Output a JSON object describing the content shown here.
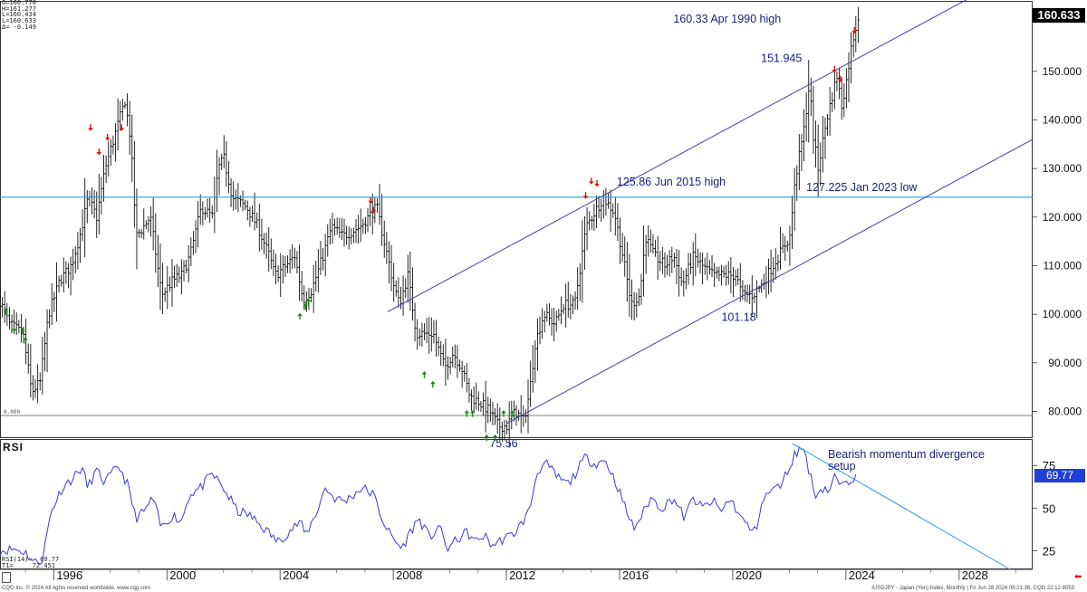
{
  "ohlc_readout": {
    "open": "O=160.770",
    "high": "H=161.277",
    "low": "L=160.434",
    "last": "L=160.633",
    "change": "Δ= -0.149"
  },
  "last_price_label": "160.633",
  "rsi_title": "RSI",
  "rsi_readout": {
    "line1": "RSI(14)=  69.77",
    "line2": "T1=     72.451"
  },
  "rsi_last_label": "69.77",
  "footer_left": "CQG Inc. © 2024 All rights reserved worldwide. www.cqg.com",
  "footer_right": "IUSDJPY - Japan (Yen) Index, Monthly | Fri Jun 28 2024 08:21:36, CQG 22.12.8053",
  "zero_label": "0.000",
  "colors": {
    "bars": "#111111",
    "channel": "#4040a0",
    "horizontal": "#2aa0e6",
    "annotation": "#1a237e",
    "down_arrow": "#e01010",
    "up_arrow": "#1a8a1a",
    "rsi_line": "#3a3adc",
    "rsi_trend": "#2a9ae6"
  },
  "chart_data": [
    {
      "type": "ohlc",
      "series": "USDJPY monthly",
      "x_ticks": [
        "1996",
        "2000",
        "2004",
        "2008",
        "2012",
        "2016",
        "2020",
        "2024",
        "2028"
      ],
      "xlim": [
        1994.1,
        2030.6
      ],
      "ylim": [
        74.5,
        164.5
      ],
      "y_ticks": [
        "80.000",
        "90.000",
        "100.000",
        "110.000",
        "120.000",
        "130.000",
        "140.000",
        "150.000",
        "160.633"
      ],
      "y_tick_values": [
        80,
        90,
        100,
        110,
        120,
        130,
        140,
        150
      ],
      "horizontal_line": 124.1,
      "channel_upper": [
        [
          2007.8,
          100.5
        ],
        [
          2028.5,
          165.5
        ]
      ],
      "channel_lower": [
        [
          2012.0,
          77.5
        ],
        [
          2030.6,
          136.0
        ]
      ],
      "anchors": [
        [
          1994.1,
          104
        ],
        [
          1994.5,
          98
        ],
        [
          1995.0,
          96
        ],
        [
          1995.3,
          84
        ],
        [
          1995.6,
          86
        ],
        [
          1995.9,
          100
        ],
        [
          1996.3,
          107
        ],
        [
          1996.7,
          110
        ],
        [
          1997.0,
          116
        ],
        [
          1997.3,
          124
        ],
        [
          1997.6,
          120
        ],
        [
          1997.9,
          130
        ],
        [
          1998.2,
          136
        ],
        [
          1998.6,
          144
        ],
        [
          1998.8,
          136
        ],
        [
          1999.0,
          116
        ],
        [
          1999.5,
          120
        ],
        [
          1999.9,
          104
        ],
        [
          2000.3,
          107
        ],
        [
          2000.6,
          108
        ],
        [
          2000.9,
          112
        ],
        [
          2001.3,
          122
        ],
        [
          2001.7,
          120
        ],
        [
          2001.9,
          130
        ],
        [
          2002.1,
          132
        ],
        [
          2002.4,
          124
        ],
        [
          2002.9,
          122
        ],
        [
          2003.3,
          118
        ],
        [
          2003.7,
          112
        ],
        [
          2003.9,
          108
        ],
        [
          2004.3,
          110
        ],
        [
          2004.6,
          112
        ],
        [
          2004.9,
          103
        ],
        [
          2005.2,
          105
        ],
        [
          2005.6,
          112
        ],
        [
          2005.9,
          118
        ],
        [
          2006.3,
          116
        ],
        [
          2006.6,
          117
        ],
        [
          2006.9,
          118
        ],
        [
          2007.2,
          120
        ],
        [
          2007.5,
          122
        ],
        [
          2007.8,
          114
        ],
        [
          2008.1,
          106
        ],
        [
          2008.3,
          102
        ],
        [
          2008.6,
          108
        ],
        [
          2008.9,
          96
        ],
        [
          2009.2,
          96
        ],
        [
          2009.5,
          96
        ],
        [
          2009.9,
          89
        ],
        [
          2010.2,
          92
        ],
        [
          2010.5,
          89
        ],
        [
          2010.8,
          83
        ],
        [
          2011.1,
          82
        ],
        [
          2011.5,
          80
        ],
        [
          2011.8,
          77
        ],
        [
          2012.1,
          77
        ],
        [
          2012.4,
          80
        ],
        [
          2012.7,
          78
        ],
        [
          2012.9,
          84
        ],
        [
          2013.1,
          94
        ],
        [
          2013.4,
          100
        ],
        [
          2013.8,
          98
        ],
        [
          2014.1,
          102
        ],
        [
          2014.5,
          102
        ],
        [
          2014.9,
          118
        ],
        [
          2015.1,
          120
        ],
        [
          2015.5,
          124
        ],
        [
          2015.9,
          121
        ],
        [
          2016.2,
          112
        ],
        [
          2016.5,
          102
        ],
        [
          2016.8,
          104
        ],
        [
          2017.0,
          116
        ],
        [
          2017.3,
          112
        ],
        [
          2017.7,
          110
        ],
        [
          2018.0,
          112
        ],
        [
          2018.3,
          106
        ],
        [
          2018.7,
          112
        ],
        [
          2019.0,
          110
        ],
        [
          2019.4,
          108
        ],
        [
          2019.8,
          108
        ],
        [
          2020.2,
          108
        ],
        [
          2020.4,
          104
        ],
        [
          2020.8,
          104
        ],
        [
          2021.1,
          106
        ],
        [
          2021.5,
          110
        ],
        [
          2021.9,
          114
        ],
        [
          2022.1,
          116
        ],
        [
          2022.3,
          128
        ],
        [
          2022.6,
          138
        ],
        [
          2022.8,
          148
        ],
        [
          2022.9,
          138
        ],
        [
          2023.1,
          130
        ],
        [
          2023.4,
          140
        ],
        [
          2023.6,
          145
        ],
        [
          2023.8,
          150
        ],
        [
          2023.9,
          142
        ],
        [
          2024.1,
          148
        ],
        [
          2024.3,
          156
        ],
        [
          2024.5,
          160.6
        ]
      ],
      "annotations": [
        {
          "text": "160.33 Apr 1990 high",
          "x": 2017.9,
          "y": 160
        },
        {
          "text": "151.945",
          "x": 2021.0,
          "y": 151.9
        },
        {
          "text": "125.86 Jun 2015 high",
          "x": 2015.9,
          "y": 126.5
        },
        {
          "text": "127.225 Jan 2023 low",
          "x": 2022.6,
          "y": 125.4
        },
        {
          "text": "101.18",
          "x": 2019.6,
          "y": 98.6
        },
        {
          "text": "75.56",
          "x": 2011.4,
          "y": 72.6
        }
      ],
      "down_arrows": [
        [
          1997.3,
          138
        ],
        [
          1997.6,
          133
        ],
        [
          1997.9,
          136
        ],
        [
          1998.4,
          138
        ],
        [
          2007.2,
          123
        ],
        [
          2007.3,
          121
        ],
        [
          2014.8,
          124
        ],
        [
          2015.0,
          127
        ],
        [
          2015.2,
          126.5
        ],
        [
          2023.6,
          150
        ],
        [
          2023.8,
          148
        ],
        [
          2024.3,
          158
        ]
      ],
      "up_arrows": [
        [
          1994.3,
          101
        ],
        [
          1994.6,
          97
        ],
        [
          1995.0,
          95
        ],
        [
          1994.9,
          97
        ],
        [
          2004.7,
          100
        ],
        [
          2004.9,
          102
        ],
        [
          2005.0,
          103
        ],
        [
          2009.1,
          88
        ],
        [
          2009.4,
          86
        ],
        [
          2010.6,
          80
        ],
        [
          2010.8,
          80
        ],
        [
          2011.3,
          75
        ],
        [
          2011.6,
          75
        ],
        [
          2011.9,
          80
        ],
        [
          2012.2,
          80
        ]
      ]
    },
    {
      "type": "line",
      "series": "RSI(14)",
      "y_ticks": [
        "25",
        "50",
        "75"
      ],
      "ylim": [
        14,
        90
      ],
      "trendline": [
        [
          2022.1,
          88
        ],
        [
          2029.8,
          14
        ]
      ],
      "anchors": [
        [
          1994.1,
          25
        ],
        [
          1994.6,
          26
        ],
        [
          1995.0,
          24
        ],
        [
          1995.3,
          18
        ],
        [
          1995.6,
          20
        ],
        [
          1995.9,
          48
        ],
        [
          1996.3,
          62
        ],
        [
          1996.7,
          68
        ],
        [
          1997.0,
          74
        ],
        [
          1997.2,
          62
        ],
        [
          1997.5,
          72
        ],
        [
          1997.8,
          65
        ],
        [
          1998.3,
          75
        ],
        [
          1998.6,
          64
        ],
        [
          1998.9,
          44
        ],
        [
          1999.2,
          48
        ],
        [
          1999.5,
          56
        ],
        [
          1999.8,
          38
        ],
        [
          2000.2,
          46
        ],
        [
          2000.5,
          42
        ],
        [
          2000.8,
          58
        ],
        [
          2001.2,
          62
        ],
        [
          2001.6,
          70
        ],
        [
          2001.9,
          64
        ],
        [
          2002.2,
          56
        ],
        [
          2002.5,
          48
        ],
        [
          2002.9,
          46
        ],
        [
          2003.3,
          40
        ],
        [
          2003.7,
          34
        ],
        [
          2003.9,
          30
        ],
        [
          2004.3,
          36
        ],
        [
          2004.7,
          42
        ],
        [
          2004.9,
          34
        ],
        [
          2005.3,
          48
        ],
        [
          2005.6,
          62
        ],
        [
          2005.9,
          56
        ],
        [
          2006.3,
          54
        ],
        [
          2006.6,
          58
        ],
        [
          2006.9,
          62
        ],
        [
          2007.3,
          58
        ],
        [
          2007.6,
          44
        ],
        [
          2007.9,
          34
        ],
        [
          2008.3,
          26
        ],
        [
          2008.6,
          36
        ],
        [
          2008.9,
          44
        ],
        [
          2009.3,
          32
        ],
        [
          2009.6,
          40
        ],
        [
          2009.9,
          26
        ],
        [
          2010.3,
          32
        ],
        [
          2010.6,
          36
        ],
        [
          2010.9,
          30
        ],
        [
          2011.2,
          34
        ],
        [
          2011.5,
          28
        ],
        [
          2011.9,
          32
        ],
        [
          2012.2,
          34
        ],
        [
          2012.5,
          40
        ],
        [
          2012.8,
          48
        ],
        [
          2013.1,
          72
        ],
        [
          2013.4,
          76
        ],
        [
          2013.8,
          68
        ],
        [
          2014.2,
          64
        ],
        [
          2014.5,
          72
        ],
        [
          2014.8,
          80
        ],
        [
          2015.1,
          76
        ],
        [
          2015.5,
          78
        ],
        [
          2015.9,
          64
        ],
        [
          2016.2,
          50
        ],
        [
          2016.5,
          38
        ],
        [
          2016.8,
          46
        ],
        [
          2017.1,
          56
        ],
        [
          2017.5,
          50
        ],
        [
          2017.9,
          56
        ],
        [
          2018.3,
          44
        ],
        [
          2018.6,
          56
        ],
        [
          2018.9,
          50
        ],
        [
          2019.3,
          54
        ],
        [
          2019.6,
          48
        ],
        [
          2019.9,
          56
        ],
        [
          2020.3,
          44
        ],
        [
          2020.6,
          38
        ],
        [
          2020.8,
          36
        ],
        [
          2021.0,
          52
        ],
        [
          2021.3,
          60
        ],
        [
          2021.6,
          62
        ],
        [
          2021.9,
          70
        ],
        [
          2022.2,
          82
        ],
        [
          2022.5,
          86
        ],
        [
          2022.7,
          72
        ],
        [
          2022.9,
          58
        ],
        [
          2023.2,
          62
        ],
        [
          2023.4,
          60
        ],
        [
          2023.6,
          68
        ],
        [
          2023.9,
          62
        ],
        [
          2024.1,
          66
        ],
        [
          2024.4,
          69.77
        ]
      ]
    }
  ]
}
